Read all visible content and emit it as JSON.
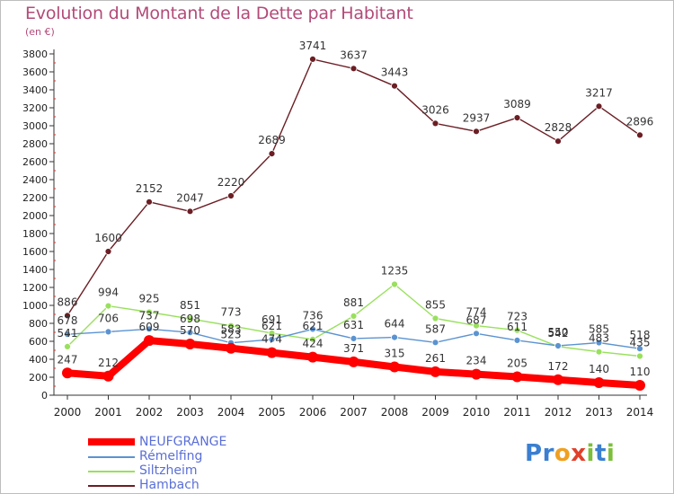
{
  "chart_data": {
    "type": "line",
    "title": "Evolution du Montant de la Dette par Habitant",
    "subtitle": "(en €)",
    "x": [
      "2000",
      "2001",
      "2002",
      "2003",
      "2004",
      "2005",
      "2006",
      "2007",
      "2008",
      "2009",
      "2010",
      "2011",
      "2012",
      "2013",
      "2014"
    ],
    "y_ticks": [
      "0",
      "200",
      "400",
      "600",
      "800",
      "1000",
      "1200",
      "1400",
      "1600",
      "1800",
      "2000",
      "2200",
      "2400",
      "2600",
      "2800",
      "3000",
      "3200",
      "3400",
      "3600",
      "3800"
    ],
    "ylim": [
      0,
      3800
    ],
    "grid": false,
    "legend_position": "bottom-left",
    "series": [
      {
        "name": "NEUFGRANGE",
        "color": "#ff0000",
        "values": [
          247,
          212,
          609,
          570,
          523,
          474,
          424,
          371,
          315,
          261,
          234,
          205,
          172,
          140,
          110
        ],
        "labels": [
          "247",
          "212",
          "609",
          "570",
          "523",
          "474",
          "424",
          "371",
          "315",
          "261",
          "234",
          "205",
          "172",
          "140",
          "110"
        ]
      },
      {
        "name": "Rémelfing",
        "color": "#5b93d1",
        "values": [
          678,
          706,
          737,
          698,
          583,
          621,
          736,
          631,
          644,
          587,
          687,
          611,
          550,
          585,
          518
        ],
        "labels": [
          "678",
          "706",
          "737",
          "698",
          "583",
          "621",
          "736",
          "631",
          "644",
          "587",
          "687",
          "611",
          "550",
          "585",
          "518"
        ]
      },
      {
        "name": "Siltzheim",
        "color": "#99e05d",
        "values": [
          541,
          994,
          925,
          851,
          773,
          691,
          621,
          881,
          1235,
          855,
          774,
          723,
          542,
          483,
          435
        ],
        "labels": [
          "541",
          "994",
          "925",
          "851",
          "773",
          "691",
          "621",
          "881",
          "1235",
          "855",
          "774",
          "723",
          "542",
          "483",
          "435"
        ]
      },
      {
        "name": "Hambach",
        "color": "#6b1e24",
        "values": [
          886,
          1600,
          2152,
          2047,
          2220,
          2689,
          3741,
          3637,
          3443,
          3026,
          2937,
          3089,
          2828,
          3217,
          2896
        ],
        "labels": [
          "886",
          "1600",
          "2152",
          "2047",
          "2220",
          "2689",
          "3741",
          "3637",
          "3443",
          "3026",
          "2937",
          "3089",
          "2828",
          "3217",
          "2896"
        ]
      }
    ]
  },
  "logo": {
    "text": "Proxiti"
  }
}
